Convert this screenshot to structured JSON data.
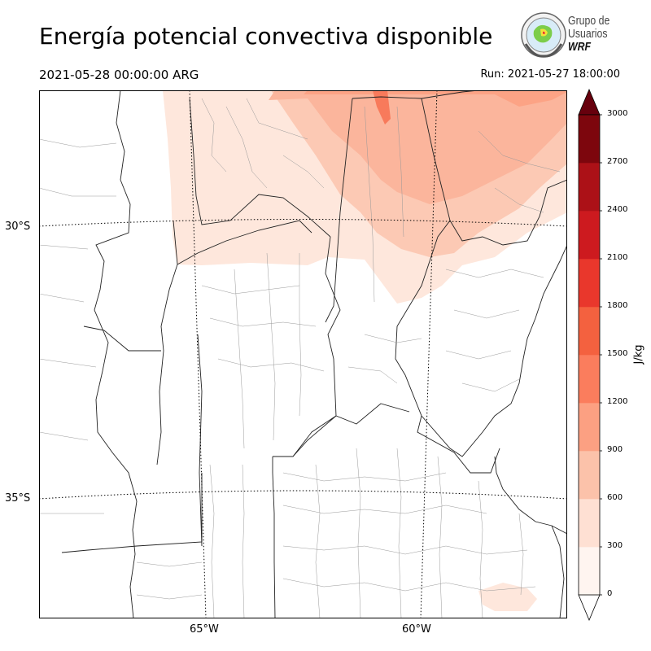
{
  "title": "Energía potencial convectiva disponible",
  "valid_time": "2021-05-28 00:00:00 ARG",
  "run_time": "Run: 2021-05-27 18:00:00",
  "logo": {
    "line1": "Grupo de",
    "line2": "Usuarios",
    "line3": "WRF"
  },
  "map": {
    "lat_labels": [
      "30°S",
      "35°S"
    ],
    "lon_labels": [
      "65°W",
      "60°W"
    ]
  },
  "colorbar": {
    "label": "J/kg",
    "ticks": [
      "0",
      "300",
      "600",
      "900",
      "1200",
      "1500",
      "1800",
      "2100",
      "2400",
      "2700",
      "3000"
    ],
    "colors": [
      "#fff5f0",
      "#fee0d3",
      "#fcc2aa",
      "#fca082",
      "#fb7d5d",
      "#f4613f",
      "#e9372c",
      "#cd1a1f",
      "#ac1117",
      "#7d060d"
    ],
    "extend_low_color": "#ffffff",
    "extend_high_color": "#67000d"
  }
}
